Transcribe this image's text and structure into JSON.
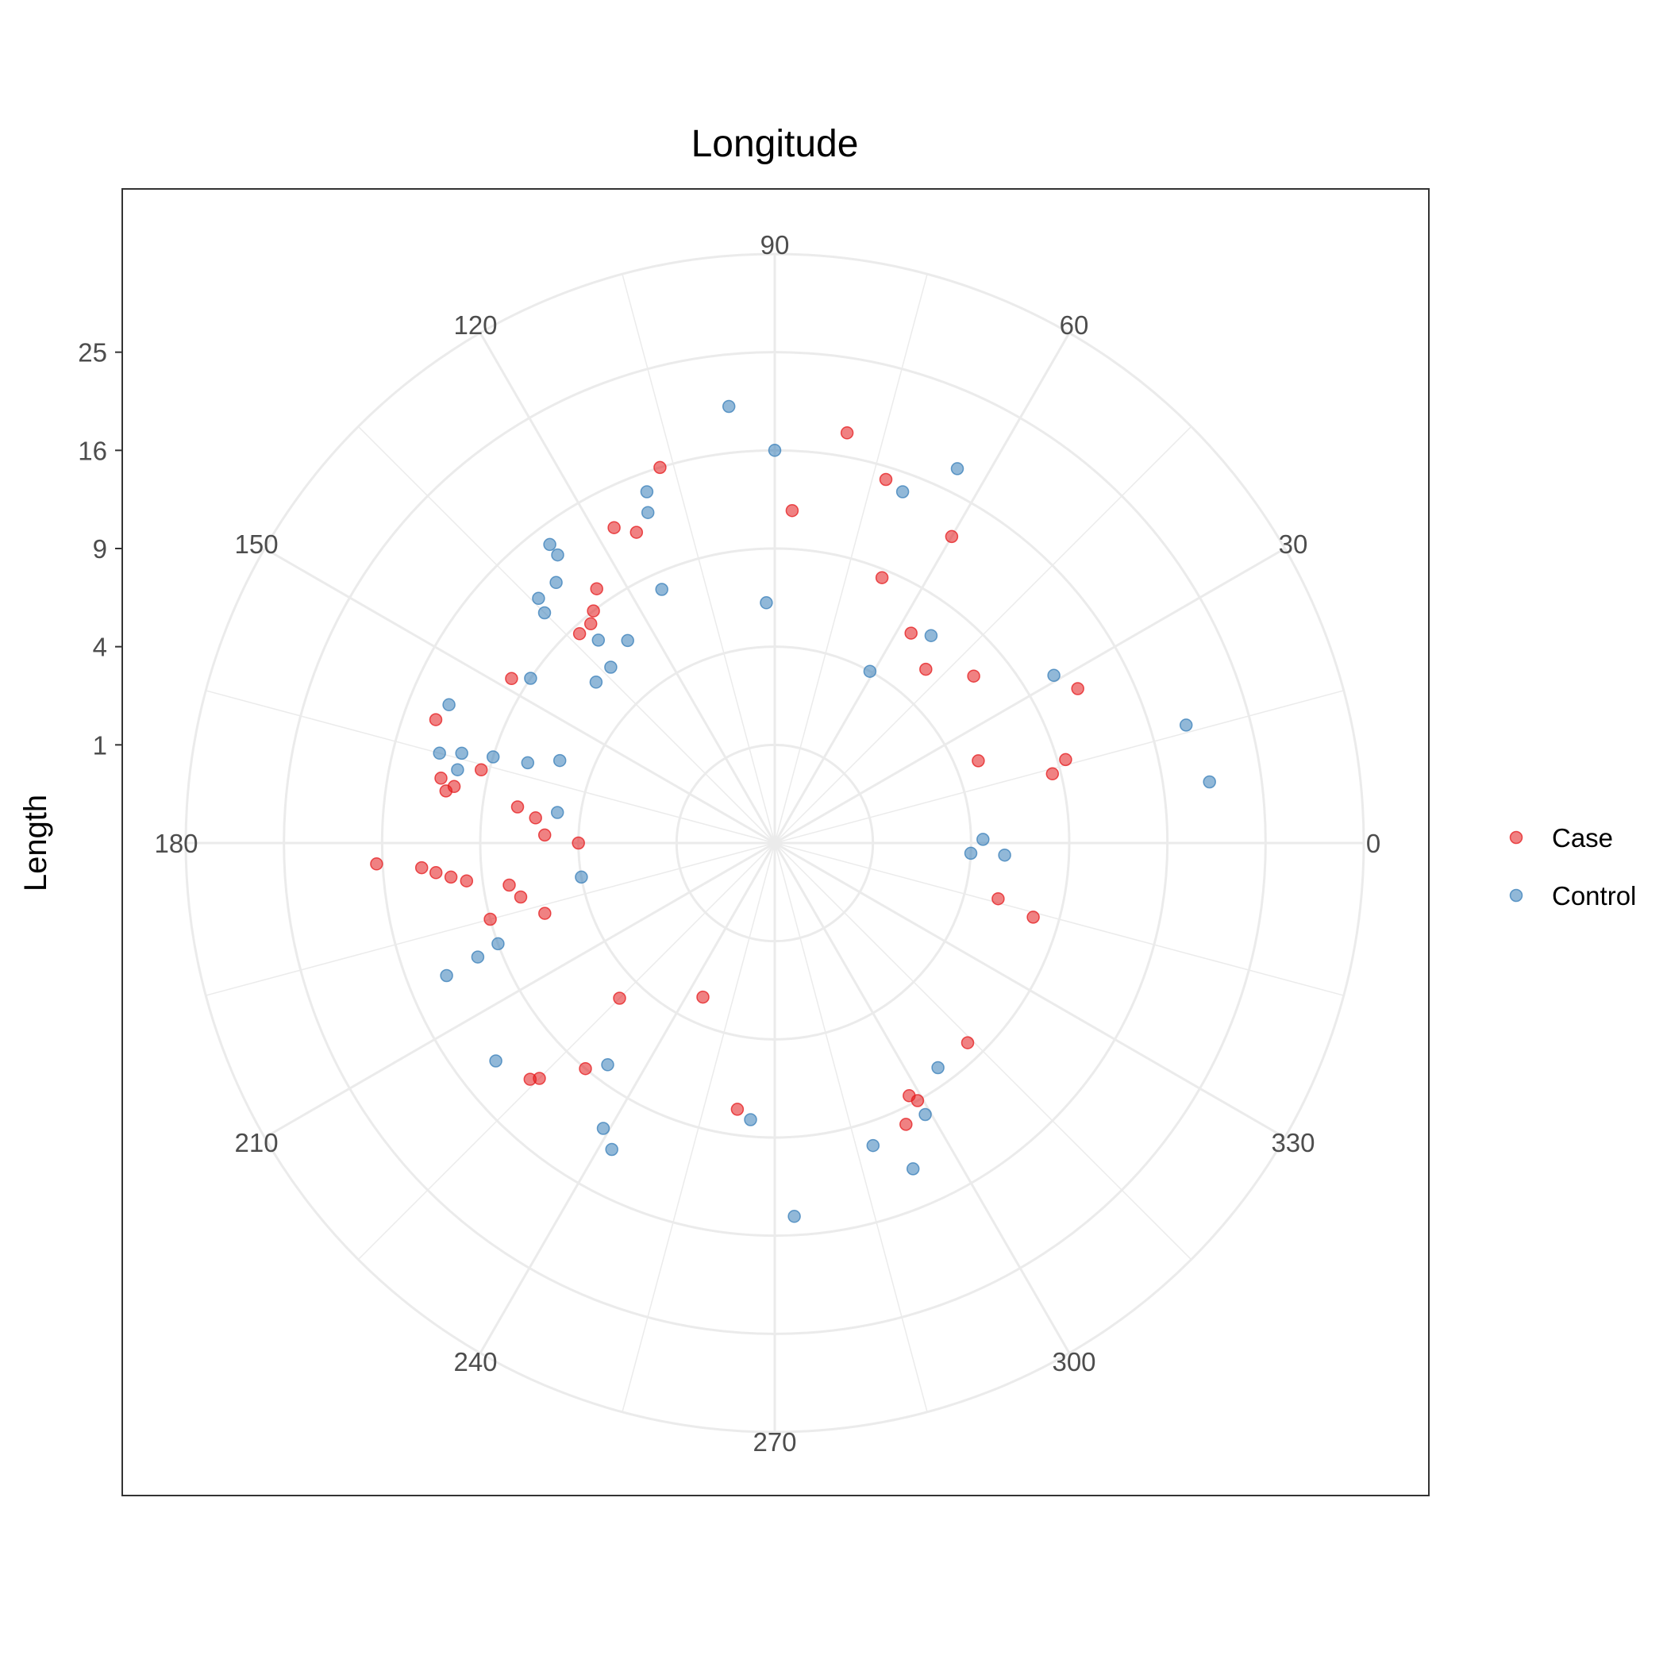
{
  "chart_data": {
    "type": "scatter",
    "coord": "polar",
    "title": "Longitude",
    "xlabel": "",
    "ylabel": "Length",
    "theta_range": [
      0,
      360
    ],
    "theta_ticks": [
      0,
      30,
      60,
      90,
      120,
      150,
      180,
      210,
      240,
      270,
      300,
      330
    ],
    "r_scale": "sqrt",
    "r_range": [
      0,
      36
    ],
    "r_ticks": [
      1,
      4,
      9,
      16,
      25
    ],
    "grid": true,
    "legend_position": "right",
    "colors": {
      "Case": "#e41a1c",
      "Control": "#377eb8"
    },
    "series": [
      {
        "name": "Case",
        "points": [
          [
            80,
            18
          ],
          [
            73,
            15
          ],
          [
            87,
            11.5
          ],
          [
            60,
            13
          ],
          [
            68,
            8.5
          ],
          [
            57,
            6.5
          ],
          [
            49,
            5.5
          ],
          [
            40,
            7
          ],
          [
            22,
            5
          ],
          [
            27,
            12
          ],
          [
            16,
            9.5
          ],
          [
            14,
            8.5
          ],
          [
            107,
            16
          ],
          [
            114,
            12
          ],
          [
            117,
            13
          ],
          [
            125,
            10
          ],
          [
            128,
            9
          ],
          [
            130,
            8.5
          ],
          [
            133,
            8.5
          ],
          [
            148,
            10
          ],
          [
            160,
            13.5
          ],
          [
            166,
            9.5
          ],
          [
            169,
            12
          ],
          [
            170,
            11
          ],
          [
            171,
            11.5
          ],
          [
            172,
            7
          ],
          [
            174,
            6
          ],
          [
            178,
            5.5
          ],
          [
            180,
            4
          ],
          [
            183,
            16.5
          ],
          [
            186,
            11
          ],
          [
            184,
            13
          ],
          [
            189,
            7.5
          ],
          [
            187,
            10
          ],
          [
            185,
            12
          ],
          [
            192,
            7
          ],
          [
            197,
            6
          ],
          [
            195,
            9
          ],
          [
            225,
            5
          ],
          [
            225,
            11.5
          ],
          [
            224,
            12
          ],
          [
            230,
            9
          ],
          [
            262,
            7.5
          ],
          [
            245,
            3
          ],
          [
            295,
            10
          ],
          [
            298,
            8.5
          ],
          [
            299,
            9
          ],
          [
            314,
            8
          ],
          [
            346,
            5.5
          ],
          [
            344,
            7.5
          ]
        ]
      },
      {
        "name": "Control",
        "points": [
          [
            90,
            16
          ],
          [
            96,
            20
          ],
          [
            64,
            18
          ],
          [
            70,
            14.5
          ],
          [
            92,
            6
          ],
          [
            134,
            12
          ],
          [
            135,
            11
          ],
          [
            127,
            13.5
          ],
          [
            127,
            14.5
          ],
          [
            130,
            12
          ],
          [
            110,
            14.5
          ],
          [
            111,
            13
          ],
          [
            114,
            8
          ],
          [
            126,
            6.5
          ],
          [
            131,
            7.5
          ],
          [
            133,
            6
          ],
          [
            138,
            6
          ],
          [
            146,
            9
          ],
          [
            162,
            7
          ],
          [
            163,
            9
          ],
          [
            164,
            11
          ],
          [
            165,
            12.5
          ],
          [
            157,
            13
          ],
          [
            172,
            5
          ],
          [
            159,
            5.5
          ],
          [
            167,
            11
          ],
          [
            190,
            4
          ],
          [
            200,
            9
          ],
          [
            201,
            10.5
          ],
          [
            202,
            13
          ],
          [
            218,
            13
          ],
          [
            233,
            8
          ],
          [
            239,
            11.5
          ],
          [
            242,
            12.5
          ],
          [
            273,
            14.5
          ],
          [
            265,
            8
          ],
          [
            288,
            10.5
          ],
          [
            293,
            13
          ],
          [
            299,
            10
          ],
          [
            306,
            8
          ],
          [
            53,
            7
          ],
          [
            8,
            20
          ],
          [
            16,
            19
          ],
          [
            61,
            4
          ],
          [
            31,
            11
          ],
          [
            357,
            4
          ],
          [
            1,
            4.5
          ],
          [
            357,
            5.5
          ]
        ]
      }
    ]
  }
}
